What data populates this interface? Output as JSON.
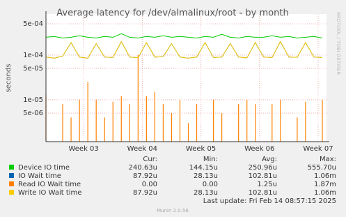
{
  "chart_data": {
    "type": "line",
    "title": "Average latency for /dev/almalinux/root - by month",
    "y_label": "seconds",
    "log_scale": true,
    "grid": true,
    "x": [
      0,
      1,
      2,
      3,
      4,
      5,
      6,
      7,
      8,
      9,
      10,
      11,
      12,
      13,
      14,
      15,
      16,
      17,
      18,
      19,
      20,
      21,
      22,
      23,
      24,
      25,
      26,
      27,
      28,
      29,
      30,
      31,
      32,
      33
    ],
    "xlim": [
      0,
      33.5
    ],
    "xticks": [
      {
        "value": 4.5,
        "label": "Week 03"
      },
      {
        "value": 11.5,
        "label": "Week 04"
      },
      {
        "value": 18.5,
        "label": "Week 05"
      },
      {
        "value": 25.5,
        "label": "Week 06"
      },
      {
        "value": 32.5,
        "label": "Week 07"
      }
    ],
    "ylim": [
      1.15e-06,
      0.00083
    ],
    "yticks": [
      {
        "value": 0.0005,
        "label": "5e-04"
      },
      {
        "value": 0.0001,
        "label": "1e-04"
      },
      {
        "value": 5e-05,
        "label": "5e-05"
      },
      {
        "value": 1e-05,
        "label": "1e-05"
      },
      {
        "value": 5e-06,
        "label": "5e-06"
      }
    ],
    "legend_headers": [
      "Cur:",
      "Min:",
      "Avg:",
      "Max:"
    ],
    "series": [
      {
        "name": "Device IO time",
        "color": "#00cc00",
        "style": "line",
        "cur": "240.63u",
        "min": "144.15u",
        "avg": "250.96u",
        "max": "555.70u",
        "values": [
          0.00025,
          0.00026,
          0.00024,
          0.00025,
          0.00027,
          0.00025,
          0.00024,
          0.00026,
          0.00025,
          0.0003,
          0.00025,
          0.00024,
          0.00026,
          0.00025,
          0.00027,
          0.00025,
          0.00026,
          0.00025,
          0.00024,
          0.00026,
          0.00025,
          0.00029,
          0.00025,
          0.00024,
          0.00026,
          0.00025,
          0.00025,
          0.00027,
          0.00025,
          0.00026,
          0.00024,
          0.00025,
          0.00026,
          0.00024
        ]
      },
      {
        "name": "IO Wait time",
        "color": "#0066b3",
        "style": "line",
        "cur": "87.92u",
        "min": "28.13u",
        "avg": "102.81u",
        "max": "1.06m",
        "values": [
          9e-05,
          8.5e-05,
          9.5e-05,
          0.00019,
          9e-05,
          8.5e-05,
          0.00018,
          9e-05,
          8.8e-05,
          0.0002,
          9e-05,
          8.7e-05,
          0.00019,
          9e-05,
          9.2e-05,
          0.00018,
          9e-05,
          8.5e-05,
          9e-05,
          0.00019,
          8.8e-05,
          9e-05,
          0.00018,
          9e-05,
          8.6e-05,
          0.00019,
          9e-05,
          8.8e-05,
          0.0002,
          9e-05,
          8.9e-05,
          0.00019,
          9e-05,
          8.8e-05
        ]
      },
      {
        "name": "Read IO Wait time",
        "color": "#ff8000",
        "style": "spike",
        "cur": "0.00",
        "min": "0.00",
        "avg": "1.25u",
        "max": "1.87m",
        "values": [
          1.3e-05,
          null,
          8e-06,
          4e-06,
          1e-05,
          2.5e-05,
          1e-05,
          4e-06,
          9e-06,
          1.2e-05,
          8e-06,
          0.0001,
          1.2e-05,
          1.5e-05,
          8e-06,
          5e-06,
          1e-05,
          3e-06,
          8e-06,
          null,
          1e-05,
          5e-06,
          null,
          8e-06,
          1e-05,
          8e-06,
          null,
          8e-06,
          1e-05,
          null,
          4e-06,
          9e-06,
          null,
          1e-05
        ]
      },
      {
        "name": "Write IO Wait time",
        "color": "#ffcc00",
        "style": "line",
        "cur": "87.92u",
        "min": "28.13u",
        "avg": "102.81u",
        "max": "1.06m",
        "values": [
          9e-05,
          8.5e-05,
          9.5e-05,
          0.00019,
          9e-05,
          8.5e-05,
          0.00018,
          9e-05,
          8.8e-05,
          0.0002,
          9e-05,
          8.7e-05,
          0.00019,
          9e-05,
          9.2e-05,
          0.00018,
          9e-05,
          8.5e-05,
          9e-05,
          0.00019,
          8.8e-05,
          9e-05,
          0.00018,
          9e-05,
          8.6e-05,
          0.00019,
          9e-05,
          8.8e-05,
          0.0002,
          9e-05,
          8.9e-05,
          0.00019,
          9e-05,
          8.8e-05
        ]
      }
    ],
    "last_update": "Last update: Fri Feb 14 08:57:15 2025",
    "footer": "Munin 2.0.56",
    "watermark": "RRDTOOL / TOBI OETIKER"
  }
}
